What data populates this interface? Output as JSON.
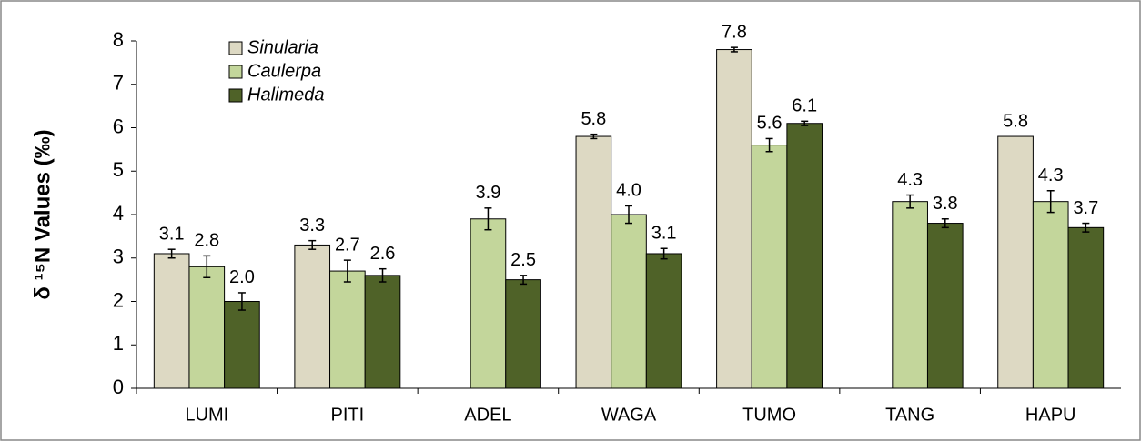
{
  "chart_data": {
    "type": "bar",
    "y_label": "δ ¹⁵N Values (‰)",
    "categories": [
      "LUMI",
      "PITI",
      "ADEL",
      "WAGA",
      "TUMO",
      "TANG",
      "HAPU"
    ],
    "series": [
      {
        "name": "Sinularia",
        "color": "#ddd9c3",
        "values": [
          3.1,
          3.3,
          null,
          5.8,
          7.8,
          null,
          5.8
        ],
        "value_labels": [
          "3.1",
          "3.3",
          null,
          "5.8",
          "7.8",
          null,
          "5.8"
        ],
        "errors": [
          0.1,
          0.1,
          null,
          0.05,
          0.05,
          null,
          null
        ]
      },
      {
        "name": "Caulerpa",
        "color": "#c3d69b",
        "values": [
          2.8,
          2.7,
          3.9,
          4.0,
          5.6,
          4.3,
          4.3
        ],
        "value_labels": [
          "2.8",
          "2.7",
          "3.9",
          "4.0",
          "5.6",
          "4.3",
          "4.3"
        ],
        "errors": [
          0.25,
          0.25,
          0.25,
          0.2,
          0.15,
          0.15,
          0.25
        ]
      },
      {
        "name": "Halimeda",
        "color": "#4f6228",
        "values": [
          2.0,
          2.6,
          2.5,
          3.1,
          6.1,
          3.8,
          3.7
        ],
        "value_labels": [
          "2.0",
          "2.6",
          "2.5",
          "3.1",
          "6.1",
          "3.8",
          "3.7"
        ],
        "errors": [
          0.2,
          0.15,
          0.1,
          0.12,
          0.05,
          0.1,
          0.1
        ]
      }
    ],
    "ylim": [
      0,
      8
    ],
    "yticks": [
      0,
      1,
      2,
      3,
      4,
      5,
      6,
      7,
      8
    ],
    "grid": false,
    "legend": "top-left"
  }
}
